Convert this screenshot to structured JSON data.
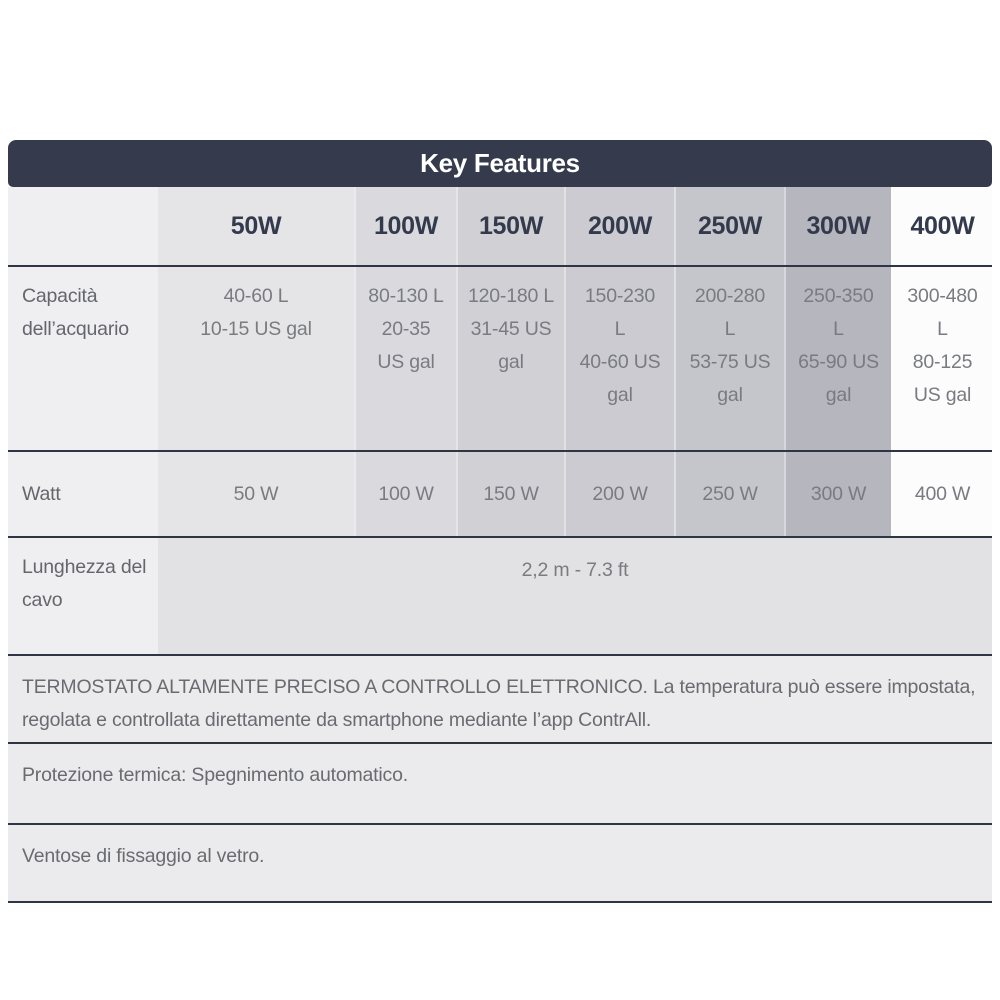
{
  "table": {
    "title": "Key Features",
    "columns": [
      "50W",
      "100W",
      "150W",
      "200W",
      "250W",
      "300W",
      "400W"
    ],
    "capacity_row": {
      "label": "Capacità\ndell’acquario",
      "values": [
        "40-60 L\n10-15 US gal",
        "80-130 L\n20-35\nUS gal",
        "120-180 L\n31-45 US\ngal",
        "150-230\nL\n40-60 US\ngal",
        "200-280\nL\n53-75 US\ngal",
        "250-350\nL\n65-90 US\ngal",
        "300-480\nL\n80-125\nUS gal"
      ]
    },
    "watt_row": {
      "label": "Watt",
      "values": [
        "50 W",
        "100 W",
        "150 W",
        "200 W",
        "250 W",
        "300 W",
        "400 W"
      ]
    },
    "cable_row": {
      "label": "Lunghezza del\ncavo",
      "value": "2,2 m - 7.3 ft"
    },
    "features": [
      "TERMOSTATO ALTAMENTE PRECISO A CONTROLLO ELETTRONICO. La temperatura può essere impostata,\nregolata e controllata direttamente da smartphone mediante l’app ContrAll.",
      "Protezione termica: Spegnimento automatico.",
      "Ventose di fissaggio al vetro."
    ],
    "colors": {
      "title_bar_bg": "#353b4d",
      "title_text": "#ffffff",
      "row_border": "#2e3544",
      "label_column_bg": "#efeff1",
      "column_bgs": [
        "#e5e5e8",
        "#dadade",
        "#d0d0d5",
        "#cbcbd1",
        "#c5c6cc",
        "#b5b6be",
        "#fcfcfd"
      ],
      "cable_value_bg": "#e2e2e5",
      "feature_row_bg": "#ebebee",
      "column_header_text": "#333a4c",
      "cell_text": "#7a7b81",
      "label_text": "#65666d"
    }
  }
}
